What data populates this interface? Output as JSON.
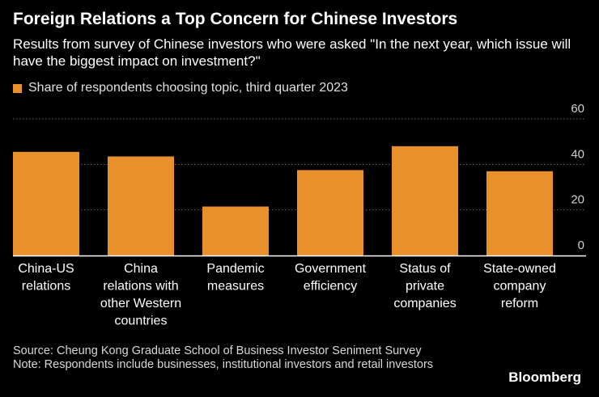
{
  "chart_data": {
    "type": "bar",
    "title": "Foreign Relations a Top Concern for Chinese Investors",
    "subtitle": "Results from survey of Chinese investors who were asked \"In the next year, which issue will have the biggest impact on investment?\"",
    "series": [
      {
        "name": "Share of respondents choosing topic, third quarter 2023",
        "values": [
          45.5,
          43.5,
          21.5,
          37.5,
          48,
          37
        ]
      }
    ],
    "categories": [
      [
        "China-US",
        "relations"
      ],
      [
        "China",
        "relations with",
        "other Western",
        "countries"
      ],
      [
        "Pandemic",
        "measures"
      ],
      [
        "Government",
        "efficiency"
      ],
      [
        "Status of",
        "private",
        "companies"
      ],
      [
        "State-owned",
        "company",
        "reform"
      ]
    ],
    "yticks": [
      "60",
      "40",
      "20",
      "0"
    ],
    "ytick_values": [
      60,
      40,
      20,
      0
    ],
    "ylim": [
      0,
      60
    ],
    "xlabel": "",
    "ylabel": "",
    "grid": true,
    "colors": {
      "bar": "#e8902b",
      "grid": "#6a6a6a",
      "axis": "#ffffff"
    }
  },
  "legend_label": "Share of respondents choosing topic, third quarter 2023",
  "source": "Source: Cheung Kong Graduate School of Business Investor Seniment Survey",
  "note": "Note: Respondents include businesses, institutional investors and retail investors",
  "brand": "Bloomberg"
}
